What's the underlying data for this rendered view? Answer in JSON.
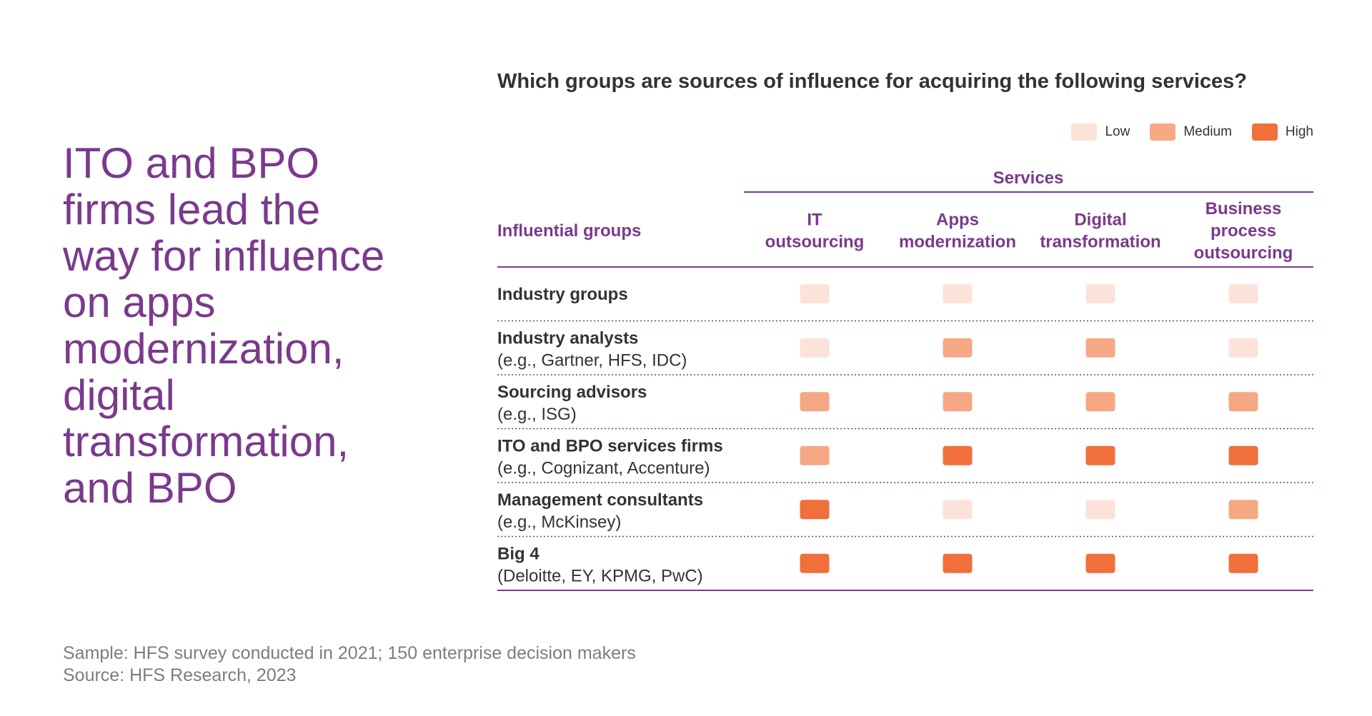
{
  "headline": "ITO and BPO firms lead the way for influence on apps modernization, digital transformation, and BPO",
  "footnote": {
    "sample": "Sample: HFS survey conducted in 2021; 150 enterprise decision makers",
    "source": "Source: HFS Research, 2023"
  },
  "colors": {
    "purple": "#7a3a8c",
    "Low": "#fbe3d9",
    "Medium": "#f6a885",
    "High": "#f06f3b"
  },
  "chart_data": {
    "type": "heatmap",
    "title": "Which groups are sources of influence for acquiring the following services?",
    "column_group_label": "Services",
    "row_header": "Influential groups",
    "legend": [
      "Low",
      "Medium",
      "High"
    ],
    "legend_position": "top-right",
    "columns": [
      [
        "IT",
        "outsourcing"
      ],
      [
        "Apps",
        "modernization"
      ],
      [
        "Digital",
        "transformation"
      ],
      [
        "Business",
        "process",
        "outsourcing"
      ]
    ],
    "rows": [
      {
        "name": "Industry groups",
        "example": "",
        "values": [
          "Low",
          "Low",
          "Low",
          "Low"
        ]
      },
      {
        "name": "Industry analysts",
        "example": "(e.g., Gartner, HFS, IDC)",
        "values": [
          "Low",
          "Medium",
          "Medium",
          "Low"
        ]
      },
      {
        "name": "Sourcing advisors",
        "example": "(e.g., ISG)",
        "values": [
          "Medium",
          "Medium",
          "Medium",
          "Medium"
        ]
      },
      {
        "name": "ITO and BPO services firms",
        "example": "(e.g., Cognizant, Accenture)",
        "values": [
          "Medium",
          "High",
          "High",
          "High"
        ]
      },
      {
        "name": "Management consultants",
        "example": "(e.g., McKinsey)",
        "values": [
          "High",
          "Low",
          "Low",
          "Medium"
        ]
      },
      {
        "name": "Big 4",
        "example": "(Deloitte, EY, KPMG, PwC)",
        "values": [
          "High",
          "High",
          "High",
          "High"
        ]
      }
    ]
  }
}
